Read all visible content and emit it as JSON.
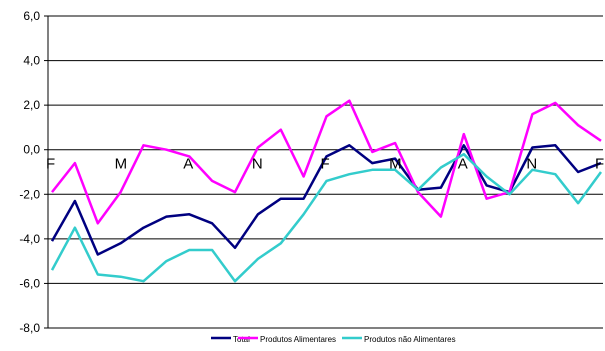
{
  "chart_data": {
    "type": "line",
    "title": "",
    "xlabel": "",
    "ylabel": "",
    "ylim": [
      -8.0,
      6.0
    ],
    "y_ticks": [
      "6,0",
      "4,0",
      "2,0",
      "0,0",
      "-2,0",
      "-4,0",
      "-6,0",
      "-8,0"
    ],
    "grid": "horizontal",
    "legend_position": "bottom",
    "x_count": 25,
    "month_labels": [
      {
        "index": 0,
        "label": "F"
      },
      {
        "index": 3,
        "label": "M"
      },
      {
        "index": 6,
        "label": "A"
      },
      {
        "index": 9,
        "label": "N"
      },
      {
        "index": 12,
        "label": "F"
      },
      {
        "index": 15,
        "label": "M"
      },
      {
        "index": 18,
        "label": "A"
      },
      {
        "index": 21,
        "label": "N"
      },
      {
        "index": 24,
        "label": "F"
      }
    ],
    "series": [
      {
        "name": "Total",
        "color": "#000080",
        "values": [
          -4.1,
          -2.3,
          -4.7,
          -4.2,
          -3.5,
          -3.0,
          -2.9,
          -3.3,
          -4.4,
          -2.9,
          -2.2,
          -2.2,
          -0.3,
          0.2,
          -0.6,
          -0.4,
          -1.8,
          -1.7,
          0.2,
          -1.6,
          -1.9,
          0.1,
          0.2,
          -1.0,
          -0.6
        ]
      },
      {
        "name": "Produtos Alimentares",
        "color": "#ff00ff",
        "values": [
          -1.9,
          -0.6,
          -3.3,
          -1.9,
          0.2,
          0.0,
          -0.3,
          -1.4,
          -1.9,
          0.1,
          0.9,
          -1.2,
          1.5,
          2.2,
          -0.1,
          0.3,
          -1.9,
          -3.0,
          0.7,
          -2.2,
          -1.9,
          1.6,
          2.1,
          1.1,
          0.4
        ]
      },
      {
        "name": "Produtos não Alimentares",
        "color": "#33cccc",
        "values": [
          -5.4,
          -3.5,
          -5.6,
          -5.7,
          -5.9,
          -5.0,
          -4.5,
          -4.5,
          -5.9,
          -4.9,
          -4.2,
          -2.9,
          -1.4,
          -1.1,
          -0.9,
          -0.9,
          -1.8,
          -0.8,
          -0.2,
          -1.2,
          -2.0,
          -0.9,
          -1.1,
          -2.4,
          -1.0
        ]
      }
    ]
  }
}
